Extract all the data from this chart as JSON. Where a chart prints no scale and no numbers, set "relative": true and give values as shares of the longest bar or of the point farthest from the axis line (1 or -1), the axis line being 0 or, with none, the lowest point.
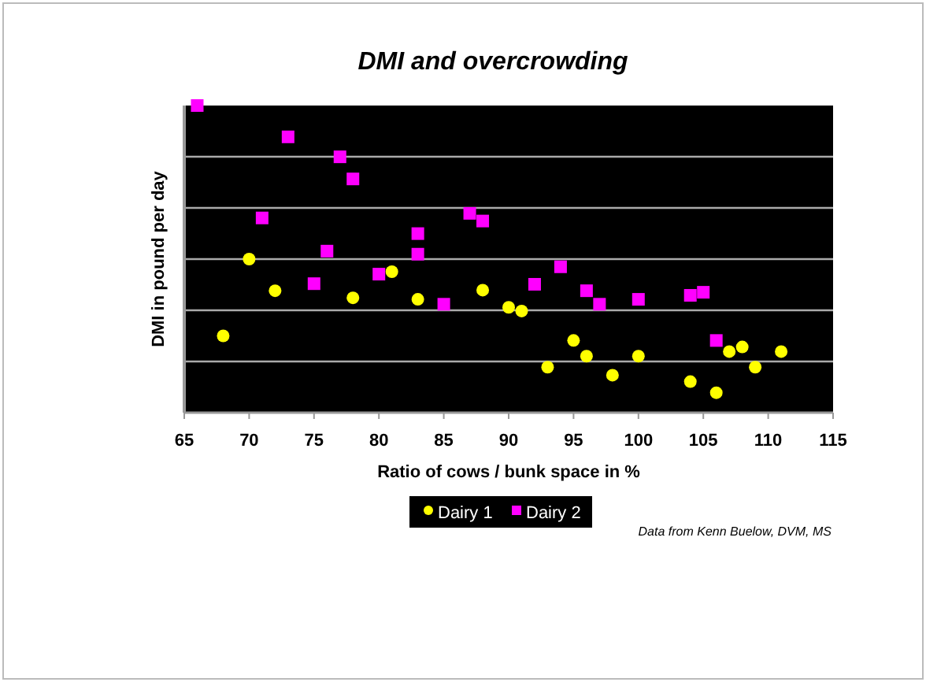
{
  "chart_data": {
    "type": "scatter",
    "title": "DMI and overcrowding",
    "xlabel": "Ratio of cows / bunk space in %",
    "ylabel": "DMI in pound per day",
    "relative": true,
    "xlim": [
      65,
      115
    ],
    "xticks": [
      65,
      70,
      75,
      80,
      85,
      90,
      95,
      100,
      105,
      110,
      115
    ],
    "grid": "y",
    "legend": "bottom",
    "annotations": [
      "Data from Kenn Buelow, DVM, MS"
    ],
    "series": [
      {
        "name": "Dairy 1",
        "color": "#ffff00",
        "marker": "circle",
        "x": [
          68,
          70,
          72,
          78,
          81,
          83,
          88,
          90,
          91,
          93,
          95,
          96,
          98,
          100,
          104,
          106,
          107,
          108,
          109,
          111
        ],
        "values": [
          0.25,
          0.5,
          0.397,
          0.374,
          0.459,
          0.369,
          0.399,
          0.343,
          0.331,
          0.148,
          0.235,
          0.184,
          0.122,
          0.184,
          0.101,
          0.065,
          0.199,
          0.214,
          0.148,
          0.199
        ]
      },
      {
        "name": "Dairy 2",
        "color": "#ff00ff",
        "marker": "square",
        "x": [
          66,
          71,
          73,
          75,
          76,
          77,
          78,
          80,
          83,
          83,
          85,
          87,
          88,
          92,
          94,
          96,
          97,
          100,
          104,
          105,
          106
        ],
        "values": [
          1,
          0.634,
          0.898,
          0.42,
          0.526,
          0.833,
          0.761,
          0.451,
          0.583,
          0.516,
          0.353,
          0.649,
          0.624,
          0.418,
          0.475,
          0.397,
          0.353,
          0.369,
          0.382,
          0.392,
          0.235
        ]
      }
    ]
  }
}
